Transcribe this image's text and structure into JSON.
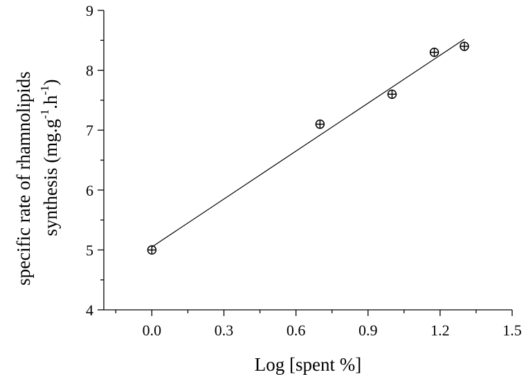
{
  "chart_data": {
    "type": "scatter",
    "title": "",
    "xlabel": "Log [spent %]",
    "ylabel_line1": "specific rate of rhamnolipids",
    "ylabel_line2": "synthesis (mg.g",
    "ylabel_exp1": "-1",
    "ylabel_mid": ".h",
    "ylabel_exp2": "-1",
    "ylabel_end": ")",
    "xlim": [
      -0.2,
      1.5
    ],
    "ylim": [
      4,
      9
    ],
    "x_ticks": [
      0.0,
      0.3,
      0.6,
      0.9,
      1.2,
      1.5
    ],
    "x_tick_labels": [
      "0.0",
      "0.3",
      "0.6",
      "0.9",
      "1.2",
      "1.5"
    ],
    "y_ticks": [
      4,
      5,
      6,
      7,
      8,
      9
    ],
    "y_tick_labels": [
      "4",
      "5",
      "6",
      "7",
      "8",
      "9"
    ],
    "grid": false,
    "series": [
      {
        "marker": "circle-plus",
        "x": [
          0.0,
          0.7,
          1.0,
          1.176,
          1.301
        ],
        "y": [
          5.0,
          7.1,
          7.6,
          8.3,
          8.4
        ]
      }
    ],
    "fit_line": {
      "x": [
        0.0,
        1.301
      ],
      "y": [
        5.05,
        8.52
      ]
    }
  }
}
